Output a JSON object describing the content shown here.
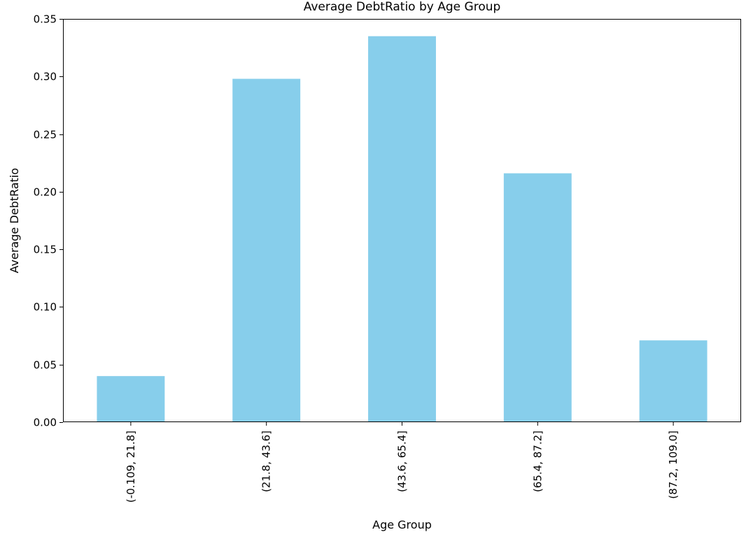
{
  "chart_data": {
    "type": "bar",
    "title": "Average DebtRatio by Age Group",
    "xlabel": "Age Group",
    "ylabel": "Average DebtRatio",
    "categories": [
      "(-0.109, 21.8]",
      "(21.8, 43.6]",
      "(43.6, 65.4]",
      "(65.4, 87.2]",
      "(87.2, 109.0]"
    ],
    "values": [
      0.04,
      0.298,
      0.335,
      0.216,
      0.071
    ],
    "ylim": [
      0,
      0.35
    ],
    "yticks": [
      0.0,
      0.05,
      0.1,
      0.15,
      0.2,
      0.25,
      0.3,
      0.35
    ],
    "ytick_labels": [
      "0.00",
      "0.05",
      "0.10",
      "0.15",
      "0.20",
      "0.25",
      "0.30",
      "0.35"
    ],
    "bar_color": "#87ceeb",
    "grid": false,
    "legend": "none",
    "xtick_rotation": "vertical"
  }
}
